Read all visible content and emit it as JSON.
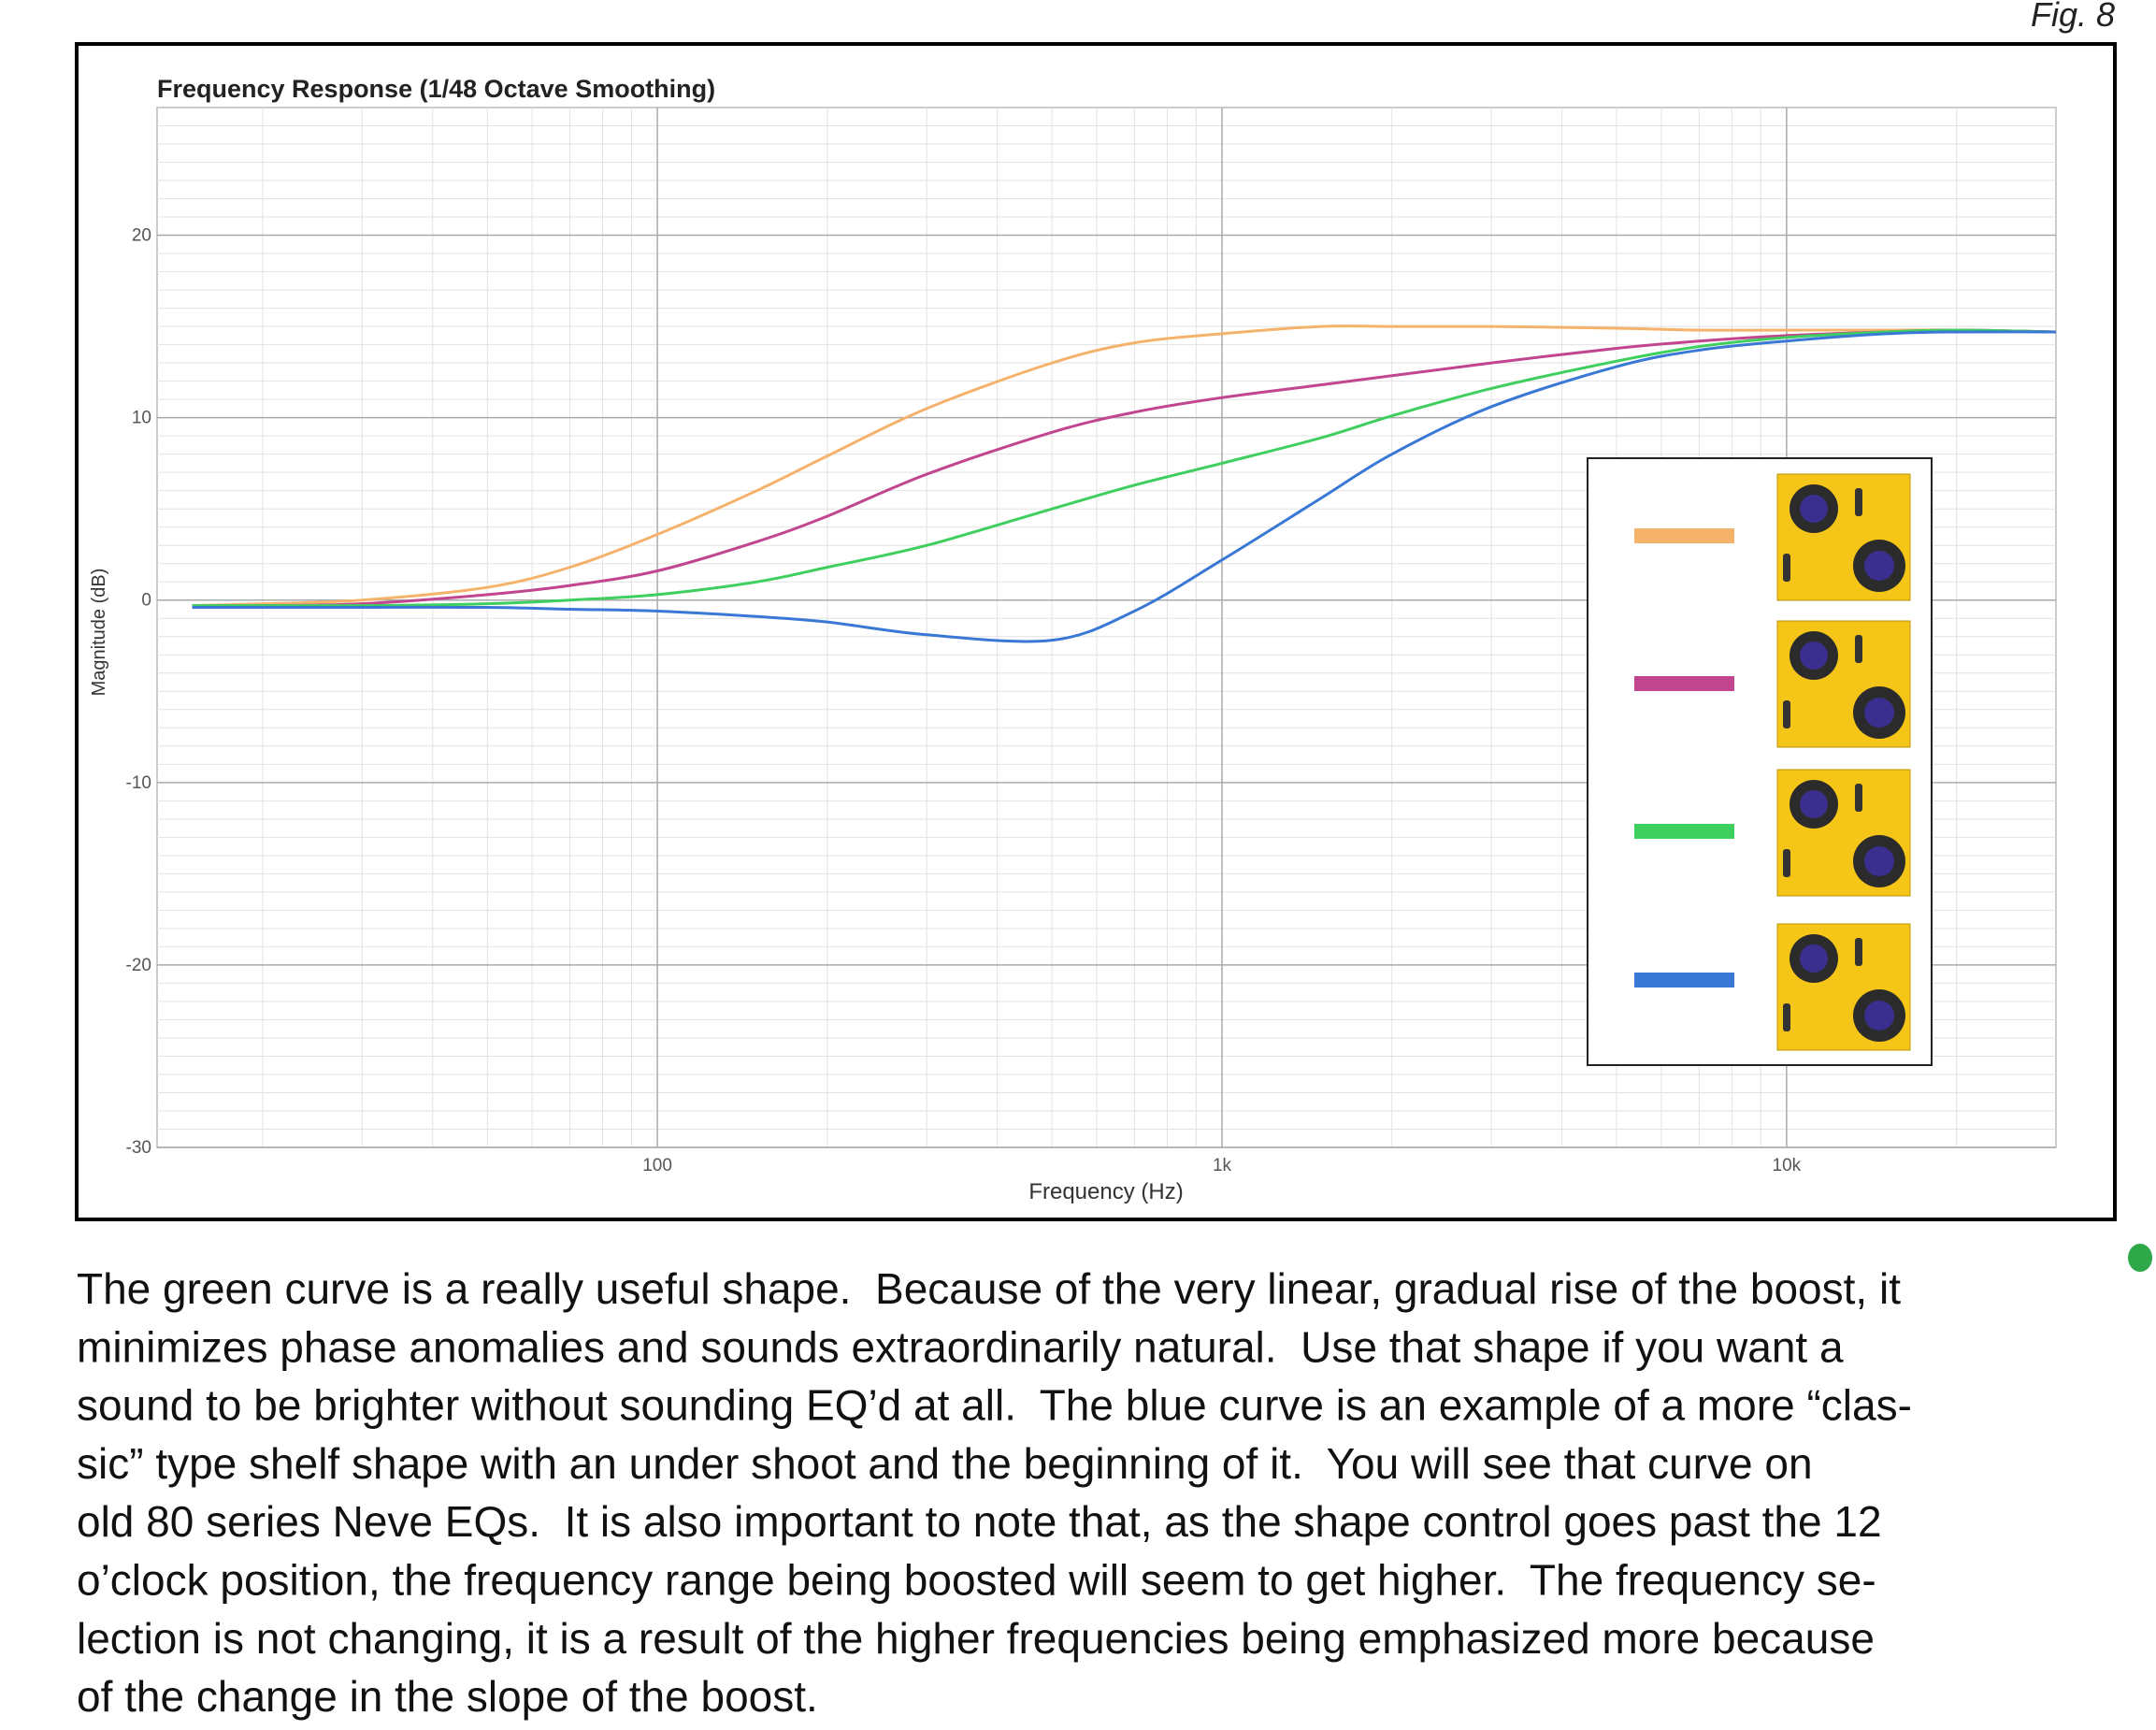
{
  "figure_label": "Fig. 8",
  "chart_data": {
    "type": "line",
    "title": "Frequency Response (1/48 Octave Smoothing)",
    "x_label": "Frequency (Hz)",
    "y_label": "Magnitude (dB)",
    "x_scale": "log",
    "grid": true,
    "xlim": [
      13,
      30000
    ],
    "ylim": [
      -30,
      27
    ],
    "xticks": [
      {
        "value": 100,
        "label": "100"
      },
      {
        "value": 1000,
        "label": "1k"
      },
      {
        "value": 10000,
        "label": "10k"
      }
    ],
    "yticks": [
      -30,
      -20,
      -10,
      0,
      10,
      20
    ],
    "minor_xticks": [
      20,
      30,
      40,
      50,
      60,
      70,
      80,
      90,
      200,
      300,
      400,
      500,
      600,
      700,
      800,
      900,
      2000,
      3000,
      4000,
      5000,
      6000,
      7000,
      8000,
      9000,
      20000
    ],
    "minor_yticks": [
      -29,
      -28,
      -27,
      -26,
      -25,
      -24,
      -23,
      -22,
      -21,
      -19,
      -18,
      -17,
      -16,
      -15,
      -14,
      -13,
      -12,
      -11,
      -9,
      -8,
      -7,
      -6,
      -5,
      -4,
      -3,
      -2,
      -1,
      1,
      2,
      3,
      4,
      5,
      6,
      7,
      8,
      9,
      11,
      12,
      13,
      14,
      15,
      16,
      17,
      18,
      19,
      21,
      22,
      23,
      24,
      25,
      26
    ],
    "x": [
      15,
      20,
      30,
      50,
      70,
      100,
      150,
      200,
      300,
      500,
      700,
      1000,
      1500,
      2000,
      3000,
      5000,
      7000,
      10000,
      15000,
      20000,
      30000
    ],
    "series": [
      {
        "color": "#f5b26b",
        "values": [
          -0.3,
          -0.2,
          0,
          0.7,
          1.8,
          3.6,
          6.0,
          7.9,
          10.5,
          13.0,
          14.1,
          14.6,
          15.0,
          15.0,
          15.0,
          14.9,
          14.8,
          14.8,
          14.8,
          14.8,
          14.7
        ]
      },
      {
        "color": "#c2458f",
        "values": [
          -0.3,
          -0.3,
          -0.2,
          0.3,
          0.8,
          1.6,
          3.2,
          4.6,
          6.9,
          9.2,
          10.3,
          11.1,
          11.8,
          12.3,
          13.0,
          13.8,
          14.2,
          14.5,
          14.7,
          14.8,
          14.7
        ]
      },
      {
        "color": "#3fcf5e",
        "values": [
          -0.3,
          -0.3,
          -0.3,
          -0.2,
          0,
          0.3,
          1.0,
          1.8,
          3.0,
          5.0,
          6.3,
          7.5,
          8.9,
          10.1,
          11.6,
          13.1,
          13.9,
          14.4,
          14.7,
          14.8,
          14.7
        ]
      },
      {
        "color": "#3a78d6",
        "values": [
          -0.4,
          -0.4,
          -0.4,
          -0.4,
          -0.5,
          -0.6,
          -0.9,
          -1.2,
          -1.9,
          -2.2,
          -0.6,
          2.2,
          5.6,
          8.0,
          10.6,
          12.8,
          13.7,
          14.2,
          14.6,
          14.7,
          14.7
        ]
      }
    ]
  },
  "body": {
    "lines": [
      "The green curve is a really useful shape.  Because of the very linear, gradual rise of the boost, it",
      "minimizes phase anomalies and sounds extraordinarily natural.  Use that shape if you want a",
      "sound to be brighter without sounding EQ’d at all.  The blue curve is an example of a more “clas-",
      "sic” type shelf shape with an under shoot and the beginning of it.  You will see that curve on",
      "old 80 series Neve EQs.  It is also important to note that, as the shape control goes past the 12",
      "o’clock position, the frequency range being boosted will seem to get higher.  The frequency se-",
      "lection is not changing, it is a result of the higher frequencies being emphasized more because",
      "of the change in the slope of the boost."
    ]
  }
}
